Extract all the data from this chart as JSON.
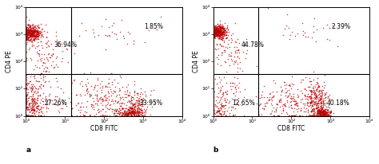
{
  "panel_a": {
    "label": "a",
    "quadrant_labels": {
      "UL": "36.94%",
      "UR": "1.85%",
      "LL": "27.26%",
      "LR": "33.95%"
    },
    "clusters": [
      {
        "x_mu": 0.15,
        "x_sig": 0.12,
        "y_mu": 3.05,
        "y_sig": 0.15,
        "n": 380
      },
      {
        "x_mu": 0.4,
        "x_sig": 0.25,
        "y_mu": 2.5,
        "y_sig": 0.4,
        "n": 60
      },
      {
        "x_mu": 0.6,
        "x_sig": 0.2,
        "y_mu": 2.0,
        "y_sig": 0.35,
        "n": 30
      },
      {
        "x_mu": 2.0,
        "x_sig": 0.5,
        "y_mu": 3.2,
        "y_sig": 0.4,
        "n": 20
      },
      {
        "x_mu": 2.5,
        "x_sig": 0.4,
        "y_mu": 3.0,
        "y_sig": 0.3,
        "n": 15
      },
      {
        "x_mu": 0.3,
        "x_sig": 0.25,
        "y_mu": 0.8,
        "y_sig": 0.5,
        "n": 180
      },
      {
        "x_mu": 0.15,
        "x_sig": 0.1,
        "y_mu": 0.3,
        "y_sig": 0.2,
        "n": 100
      },
      {
        "x_mu": 2.2,
        "x_sig": 0.45,
        "y_mu": 0.6,
        "y_sig": 0.45,
        "n": 200
      },
      {
        "x_mu": 2.65,
        "x_sig": 0.2,
        "y_mu": 0.15,
        "y_sig": 0.1,
        "n": 200
      },
      {
        "x_mu": 2.8,
        "x_sig": 0.12,
        "y_mu": 0.35,
        "y_sig": 0.25,
        "n": 120
      },
      {
        "x_mu": 1.5,
        "x_sig": 0.4,
        "y_mu": 0.5,
        "y_sig": 0.4,
        "n": 80
      }
    ]
  },
  "panel_b": {
    "label": "b",
    "quadrant_labels": {
      "UL": "44.78%",
      "UR": "2.39%",
      "LL": "12.65%",
      "LR": "40.18%"
    },
    "clusters": [
      {
        "x_mu": 0.12,
        "x_sig": 0.1,
        "y_mu": 3.1,
        "y_sig": 0.12,
        "n": 480
      },
      {
        "x_mu": 0.35,
        "x_sig": 0.22,
        "y_mu": 2.6,
        "y_sig": 0.35,
        "n": 70
      },
      {
        "x_mu": 0.6,
        "x_sig": 0.2,
        "y_mu": 2.0,
        "y_sig": 0.3,
        "n": 25
      },
      {
        "x_mu": 2.0,
        "x_sig": 0.45,
        "y_mu": 3.1,
        "y_sig": 0.35,
        "n": 18
      },
      {
        "x_mu": 2.6,
        "x_sig": 0.35,
        "y_mu": 3.0,
        "y_sig": 0.3,
        "n": 12
      },
      {
        "x_mu": 0.3,
        "x_sig": 0.22,
        "y_mu": 0.75,
        "y_sig": 0.45,
        "n": 100
      },
      {
        "x_mu": 0.15,
        "x_sig": 0.1,
        "y_mu": 0.25,
        "y_sig": 0.18,
        "n": 50
      },
      {
        "x_mu": 2.0,
        "x_sig": 0.4,
        "y_mu": 0.6,
        "y_sig": 0.45,
        "n": 150
      },
      {
        "x_mu": 2.65,
        "x_sig": 0.15,
        "y_mu": 0.55,
        "y_sig": 0.35,
        "n": 280
      },
      {
        "x_mu": 2.8,
        "x_sig": 0.1,
        "y_mu": 0.12,
        "y_sig": 0.09,
        "n": 220
      },
      {
        "x_mu": 1.5,
        "x_sig": 0.35,
        "y_mu": 0.5,
        "y_sig": 0.38,
        "n": 60
      }
    ]
  },
  "dot_color": "#bb0000",
  "dot_size": 1.2,
  "dot_alpha": 0.75,
  "gate_x": 1.15,
  "gate_y": 1.55,
  "xlim_log": [
    0,
    4
  ],
  "ylim_log": [
    0,
    4
  ],
  "xlabel": "CD8 FITC",
  "ylabel": "CD4 PE",
  "tick_vals": [
    0,
    1,
    2,
    3,
    4
  ],
  "ticklabels": [
    "10⁰",
    "10¹",
    "10²",
    "10³",
    "10⁴"
  ],
  "axis_label_fontsize": 5.5,
  "tick_fontsize": 4.5,
  "quadrant_fontsize": 5.5,
  "panel_label_fontsize": 6.5,
  "figsize": [
    4.74,
    2.06
  ],
  "dpi": 100
}
